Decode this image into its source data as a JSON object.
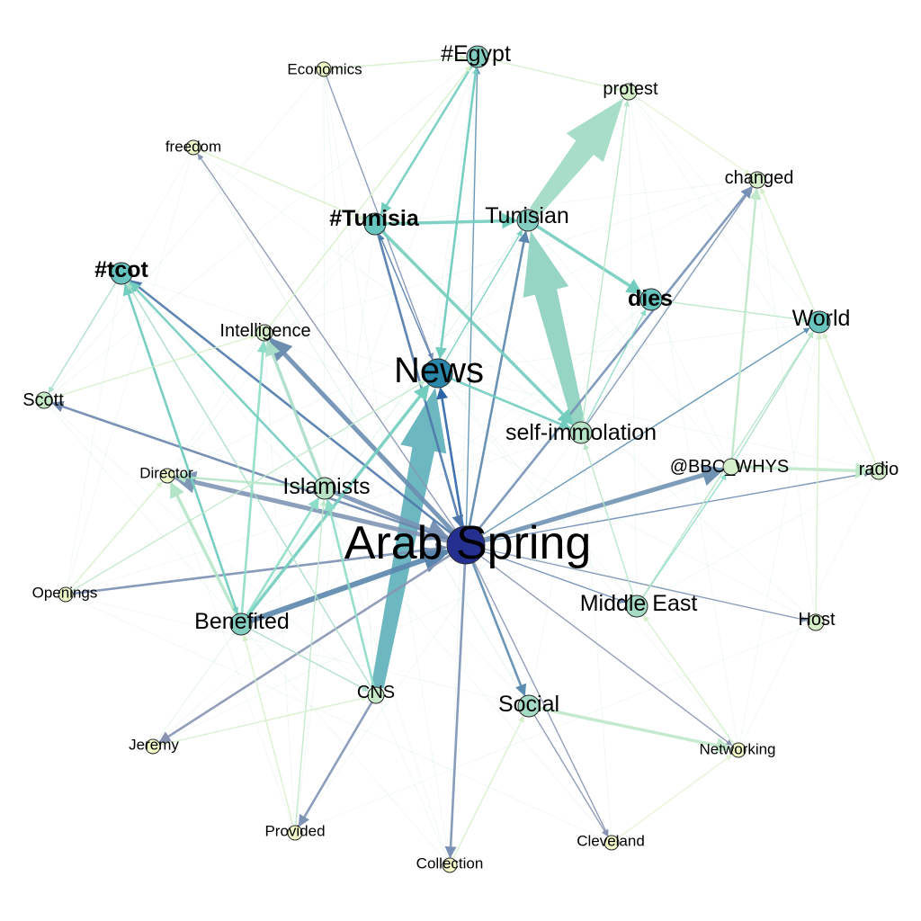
{
  "graph": {
    "nodes": [
      {
        "id": "arab_spring",
        "label": "Arab Spring",
        "color": "#252f8f",
        "size": "xl"
      },
      {
        "id": "news",
        "label": "News",
        "color": "#2b87aa",
        "size": "l"
      },
      {
        "id": "tunisia_tag",
        "label": "#Tunisia",
        "color": "#68c4bf",
        "size": "m"
      },
      {
        "id": "egypt_tag",
        "label": "#Egypt",
        "color": "#83cdc0",
        "size": "m"
      },
      {
        "id": "tcot",
        "label": "#tcot",
        "color": "#68c4bf",
        "size": "m"
      },
      {
        "id": "tunisian",
        "label": "Tunisian",
        "color": "#83cdc0",
        "size": "m"
      },
      {
        "id": "protest",
        "label": "protest",
        "color": "#d6efcb",
        "size": "s"
      },
      {
        "id": "changed",
        "label": "changed",
        "color": "#d6efcb",
        "size": "s"
      },
      {
        "id": "economics",
        "label": "Economics",
        "color": "#ecf7c8",
        "size": "xs"
      },
      {
        "id": "freedom",
        "label": "freedom",
        "color": "#ecf7c8",
        "size": "xs"
      },
      {
        "id": "dies",
        "label": "dies",
        "color": "#68c4bf",
        "size": "m"
      },
      {
        "id": "world",
        "label": "World",
        "color": "#68c4bf",
        "size": "m"
      },
      {
        "id": "intelligence",
        "label": "Intelligence",
        "color": "#d6efcb",
        "size": "s"
      },
      {
        "id": "scott",
        "label": "Scott",
        "color": "#c6e9c8",
        "size": "s"
      },
      {
        "id": "self_immolation",
        "label": "self-immolation",
        "color": "#b7e3c7",
        "size": "m"
      },
      {
        "id": "bbc_whys",
        "label": "@BBC_WHYS",
        "color": "#d6efcb",
        "size": "s"
      },
      {
        "id": "radio",
        "label": "radio",
        "color": "#d6efcb",
        "size": "s"
      },
      {
        "id": "director",
        "label": "Director",
        "color": "#ecf7c8",
        "size": "xs"
      },
      {
        "id": "islamists",
        "label": "Islamists",
        "color": "#b7e3c7",
        "size": "m"
      },
      {
        "id": "openings",
        "label": "Openings",
        "color": "#ecf7c8",
        "size": "xs"
      },
      {
        "id": "benefited",
        "label": "Benefited",
        "color": "#83cdc0",
        "size": "m"
      },
      {
        "id": "middle_east",
        "label": "Middle East",
        "color": "#a6dcc4",
        "size": "m"
      },
      {
        "id": "host",
        "label": "Host",
        "color": "#d6efcb",
        "size": "s"
      },
      {
        "id": "cns",
        "label": "CNS",
        "color": "#c6e9c8",
        "size": "s"
      },
      {
        "id": "social",
        "label": "Social",
        "color": "#a6dcc4",
        "size": "m"
      },
      {
        "id": "jeremy",
        "label": "Jeremy",
        "color": "#f5fbc8",
        "size": "xs"
      },
      {
        "id": "networking",
        "label": "Networking",
        "color": "#f5fbc8",
        "size": "xs"
      },
      {
        "id": "provided",
        "label": "Provided",
        "color": "#f5fbc8",
        "size": "xs"
      },
      {
        "id": "collection",
        "label": "Collection",
        "color": "#f5fbc8",
        "size": "xs"
      },
      {
        "id": "cleveland",
        "label": "Cleveland",
        "color": "#f5fbc8",
        "size": "xs"
      }
    ],
    "edges": [
      {
        "from": "cns",
        "to": "news",
        "weight": 10,
        "color": "#6db8c0"
      },
      {
        "from": "self_immolation",
        "to": "tunisian",
        "weight": 9,
        "color": "#96d4c3"
      },
      {
        "from": "tunisian",
        "to": "protest",
        "weight": 10,
        "color": "#a8ddc8"
      },
      {
        "from": "benefited",
        "to": "arab_spring",
        "weight": 5,
        "color": "#5a86ad"
      },
      {
        "from": "arab_spring",
        "to": "intelligence",
        "weight": 4,
        "color": "#6a8db0"
      },
      {
        "from": "arab_spring",
        "to": "director",
        "weight": 4,
        "color": "#7f96b5"
      },
      {
        "from": "arab_spring",
        "to": "bbc_whys",
        "weight": 4,
        "color": "#6f92b3"
      },
      {
        "from": "islamists",
        "to": "arab_spring",
        "weight": 4,
        "color": "#7a93b5"
      },
      {
        "from": "arab_spring",
        "to": "tcot",
        "weight": 2,
        "color": "#4e78aa"
      },
      {
        "from": "arab_spring",
        "to": "scott",
        "weight": 2,
        "color": "#6b85ad"
      },
      {
        "from": "openings",
        "to": "arab_spring",
        "weight": 2,
        "color": "#7b8fb2"
      },
      {
        "from": "arab_spring",
        "to": "jeremy",
        "weight": 2,
        "color": "#8893b2"
      },
      {
        "from": "arab_spring",
        "to": "collection",
        "weight": 2,
        "color": "#7a91b5"
      },
      {
        "from": "arab_spring",
        "to": "social",
        "weight": 2,
        "color": "#5b8bb0"
      },
      {
        "from": "arab_spring",
        "to": "tunisian",
        "weight": 2,
        "color": "#5a86ad"
      },
      {
        "from": "arab_spring",
        "to": "changed",
        "weight": 2,
        "color": "#7490b5"
      },
      {
        "from": "arab_spring",
        "to": "radio",
        "weight": 1,
        "color": "#6e8cb2"
      },
      {
        "from": "arab_spring",
        "to": "host",
        "weight": 1,
        "color": "#7f93b5"
      },
      {
        "from": "arab_spring",
        "to": "middle_east",
        "weight": 1,
        "color": "#6e8cb2"
      },
      {
        "from": "arab_spring",
        "to": "cleveland",
        "weight": 1,
        "color": "#8893b2"
      },
      {
        "from": "arab_spring",
        "to": "networking",
        "weight": 1,
        "color": "#8893b2"
      },
      {
        "from": "arab_spring",
        "to": "freedom",
        "weight": 1,
        "color": "#8893b2"
      },
      {
        "from": "arab_spring",
        "to": "news",
        "weight": 2,
        "color": "#2d64a8"
      },
      {
        "from": "arab_spring",
        "to": "egypt_tag",
        "weight": 1,
        "color": "#5a8fb2"
      },
      {
        "from": "arab_spring",
        "to": "world",
        "weight": 1,
        "color": "#5a8fb2"
      },
      {
        "from": "economics",
        "to": "news",
        "weight": 1,
        "color": "#7f93b5"
      },
      {
        "from": "tunisia_tag",
        "to": "arab_spring",
        "weight": 2,
        "color": "#4e78aa"
      },
      {
        "from": "cns",
        "to": "provided",
        "weight": 2,
        "color": "#7f93b5"
      },
      {
        "from": "tunisia_tag",
        "to": "tunisian",
        "weight": 3,
        "color": "#72cdbf"
      },
      {
        "from": "tunisian",
        "to": "dies",
        "weight": 3,
        "color": "#72cdbf"
      },
      {
        "from": "tunisia_tag",
        "to": "self_immolation",
        "weight": 3,
        "color": "#72cdbf"
      },
      {
        "from": "egypt_tag",
        "to": "tunisia_tag",
        "weight": 2,
        "color": "#72cdbf"
      },
      {
        "from": "egypt_tag",
        "to": "news",
        "weight": 2,
        "color": "#72cdbf"
      },
      {
        "from": "benefited",
        "to": "intelligence",
        "weight": 2,
        "color": "#8ddcc7"
      },
      {
        "from": "benefited",
        "to": "news",
        "weight": 3,
        "color": "#72cdbf"
      },
      {
        "from": "benefited",
        "to": "director",
        "weight": 3,
        "color": "#b5e5c8"
      },
      {
        "from": "benefited",
        "to": "tcot",
        "weight": 2,
        "color": "#72cdbf"
      },
      {
        "from": "islamists",
        "to": "intelligence",
        "weight": 3,
        "color": "#a8ddc8"
      },
      {
        "from": "islamists",
        "to": "tcot",
        "weight": 2,
        "color": "#72cdbf"
      },
      {
        "from": "islamists",
        "to": "director",
        "weight": 2,
        "color": "#b5e5c8"
      },
      {
        "from": "cns",
        "to": "islamists",
        "weight": 2,
        "color": "#8ddcc7"
      },
      {
        "from": "benefited",
        "to": "islamists",
        "weight": 2,
        "color": "#8ddcc7"
      },
      {
        "from": "news",
        "to": "self_immolation",
        "weight": 2,
        "color": "#72cdbf"
      },
      {
        "from": "news",
        "to": "tunisian",
        "weight": 1,
        "color": "#72cdbf"
      },
      {
        "from": "social",
        "to": "networking",
        "weight": 3,
        "color": "#c0e8cb"
      },
      {
        "from": "bbc_whys",
        "to": "radio",
        "weight": 3,
        "color": "#c0e8cb"
      },
      {
        "from": "bbc_whys",
        "to": "changed",
        "weight": 2,
        "color": "#c0e8cb"
      },
      {
        "from": "bbc_whys",
        "to": "world",
        "weight": 1,
        "color": "#a8ddc8"
      },
      {
        "from": "middle_east",
        "to": "bbc_whys",
        "weight": 1,
        "color": "#8ddcc7"
      },
      {
        "from": "social",
        "to": "cleveland",
        "weight": 1,
        "color": "#8893b2"
      },
      {
        "from": "self_immolation",
        "to": "changed",
        "weight": 1,
        "color": "#7f93b5"
      },
      {
        "from": "self_immolation",
        "to": "protest",
        "weight": 1,
        "color": "#b5e5c8"
      },
      {
        "from": "self_immolation",
        "to": "dies",
        "weight": 1,
        "color": "#8ddcc7"
      },
      {
        "from": "news",
        "to": "egypt_tag",
        "weight": 1,
        "color": "#72cdbf"
      },
      {
        "from": "news",
        "to": "tunisia_tag",
        "weight": 1,
        "color": "#4e78aa"
      },
      {
        "from": "tcot",
        "to": "scott",
        "weight": 1,
        "color": "#a8ddc8"
      },
      {
        "from": "tcot",
        "to": "benefited",
        "weight": 1,
        "color": "#72cdbf"
      },
      {
        "from": "cns",
        "to": "tcot",
        "weight": 1,
        "color": "#a8ddc8"
      },
      {
        "from": "openings",
        "to": "news",
        "weight": 1,
        "color": "#c0e8cb"
      },
      {
        "from": "provided",
        "to": "islamists",
        "weight": 1,
        "color": "#c0e8cb"
      },
      {
        "from": "middle_east",
        "to": "self_immolation",
        "weight": 1,
        "color": "#b5e5c8"
      },
      {
        "from": "middle_east",
        "to": "world",
        "weight": 1,
        "color": "#b5e5c8"
      },
      {
        "from": "dies",
        "to": "world",
        "weight": 1,
        "color": "#b5e5c8"
      },
      {
        "from": "benefited",
        "to": "cns",
        "weight": 1,
        "color": "#a8ddc8"
      },
      {
        "from": "jeremy",
        "to": "cns",
        "weight": 1,
        "color": "#d6efcb"
      },
      {
        "from": "host",
        "to": "world",
        "weight": 1,
        "color": "#d6efcb"
      },
      {
        "from": "radio",
        "to": "world",
        "weight": 1,
        "color": "#d6efcb"
      },
      {
        "from": "networking",
        "to": "middle_east",
        "weight": 1,
        "color": "#d6efcb"
      },
      {
        "from": "intelligence",
        "to": "egypt_tag",
        "weight": 1,
        "color": "#d6efcb"
      },
      {
        "from": "freedom",
        "to": "tunisia_tag",
        "weight": 1,
        "color": "#d6efcb"
      },
      {
        "from": "economics",
        "to": "egypt_tag",
        "weight": 1,
        "color": "#d6efcb"
      },
      {
        "from": "scott",
        "to": "intelligence",
        "weight": 1,
        "color": "#d6efcb"
      },
      {
        "from": "openings",
        "to": "director",
        "weight": 1,
        "color": "#d6efcb"
      },
      {
        "from": "collection",
        "to": "social",
        "weight": 1,
        "color": "#d6efcb"
      },
      {
        "from": "provided",
        "to": "benefited",
        "weight": 1,
        "color": "#d6efcb"
      },
      {
        "from": "cleveland",
        "to": "networking",
        "weight": 1,
        "color": "#e4f3d6"
      },
      {
        "from": "protest",
        "to": "changed",
        "weight": 1,
        "color": "#e4f3d6"
      },
      {
        "from": "egypt_tag",
        "to": "protest",
        "weight": 1,
        "color": "#d6efcb"
      },
      {
        "from": "world",
        "to": "changed",
        "weight": 1,
        "color": "#d6efcb"
      }
    ]
  }
}
